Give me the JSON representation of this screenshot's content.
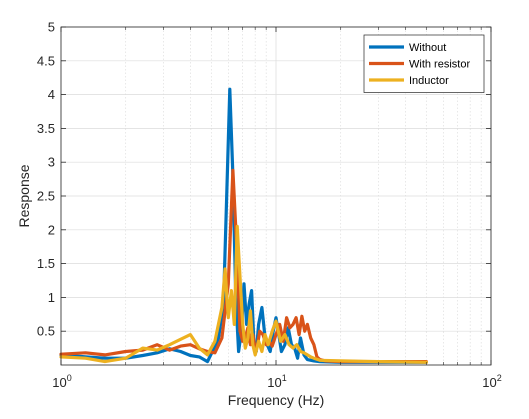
{
  "chart_data": {
    "type": "line",
    "xscale": "log",
    "xlim": [
      1,
      100
    ],
    "ylim": [
      0,
      5
    ],
    "xlabel": "Frequency (Hz)",
    "ylabel": "Response",
    "x_ticks": [
      1,
      10,
      100
    ],
    "x_tick_labels": [
      {
        "base": "10",
        "exp": "0"
      },
      {
        "base": "10",
        "exp": "1"
      },
      {
        "base": "10",
        "exp": "2"
      }
    ],
    "y_ticks": [
      0.5,
      1,
      1.5,
      2,
      2.5,
      3,
      3.5,
      4,
      4.5,
      5
    ],
    "y_tick_labels": [
      "0.5",
      "1",
      "1.5",
      "2",
      "2.5",
      "3",
      "3.5",
      "4",
      "4.5",
      "5"
    ],
    "grid": true,
    "legend_position": "top-right",
    "series": [
      {
        "name": "Without",
        "color": "#0072BD",
        "x": [
          1.0,
          1.3,
          1.6,
          2.0,
          2.4,
          2.8,
          3.2,
          3.6,
          4.0,
          4.4,
          4.8,
          5.1,
          5.4,
          5.7,
          5.9,
          6.1,
          6.3,
          6.5,
          6.7,
          6.9,
          7.1,
          7.3,
          7.5,
          7.7,
          7.9,
          8.1,
          8.3,
          8.6,
          8.9,
          9.1,
          9.4,
          9.7,
          10.0,
          10.3,
          10.6,
          11.0,
          11.4,
          11.8,
          12.2,
          12.6,
          13.0,
          13.5,
          14.0,
          15.0,
          16.0,
          20.0,
          30.0,
          50.0
        ],
        "values": [
          0.15,
          0.12,
          0.1,
          0.1,
          0.14,
          0.18,
          0.24,
          0.2,
          0.14,
          0.12,
          0.05,
          0.22,
          0.4,
          0.9,
          2.5,
          4.08,
          2.8,
          1.0,
          0.2,
          0.5,
          1.2,
          0.6,
          0.9,
          1.1,
          0.3,
          0.2,
          0.6,
          0.85,
          0.4,
          0.3,
          0.2,
          0.5,
          0.7,
          0.45,
          0.2,
          0.3,
          0.55,
          0.3,
          0.25,
          0.1,
          0.4,
          0.15,
          0.08,
          0.06,
          0.05,
          0.04,
          0.04,
          0.04
        ]
      },
      {
        "name": "With resistor",
        "color": "#D95319",
        "x": [
          1.0,
          1.3,
          1.6,
          2.0,
          2.4,
          2.8,
          3.2,
          3.6,
          4.0,
          4.4,
          4.8,
          5.2,
          5.6,
          6.0,
          6.3,
          6.6,
          6.8,
          7.0,
          7.2,
          7.4,
          7.6,
          7.8,
          8.0,
          8.2,
          8.4,
          8.7,
          9.0,
          9.3,
          9.6,
          10.0,
          10.4,
          10.8,
          11.2,
          11.6,
          12.0,
          12.4,
          12.8,
          13.2,
          13.6,
          14.0,
          14.5,
          15.0,
          15.5,
          16.0,
          17.0,
          20.0,
          30.0,
          50.0
        ],
        "values": [
          0.16,
          0.18,
          0.15,
          0.2,
          0.22,
          0.3,
          0.22,
          0.28,
          0.3,
          0.24,
          0.2,
          0.18,
          0.4,
          1.2,
          2.88,
          1.6,
          0.5,
          0.35,
          0.4,
          0.55,
          0.3,
          0.45,
          0.25,
          0.3,
          0.5,
          0.45,
          0.3,
          0.35,
          0.28,
          0.45,
          0.6,
          0.35,
          0.7,
          0.55,
          0.6,
          0.7,
          0.45,
          0.72,
          0.5,
          0.6,
          0.4,
          0.3,
          0.12,
          0.08,
          0.06,
          0.05,
          0.05,
          0.05
        ]
      },
      {
        "name": "Inductor",
        "color": "#EDB120",
        "x": [
          1.0,
          1.3,
          1.6,
          2.0,
          2.4,
          2.8,
          3.2,
          3.6,
          4.0,
          4.4,
          4.8,
          5.2,
          5.6,
          5.8,
          6.0,
          6.2,
          6.4,
          6.6,
          6.8,
          7.0,
          7.2,
          7.4,
          7.6,
          7.8,
          8.0,
          8.3,
          8.6,
          8.9,
          9.2,
          9.6,
          10.0,
          10.5,
          11.0,
          11.5,
          12.0,
          12.5,
          13.0,
          13.5,
          14.0,
          14.5,
          15.0,
          16.0,
          20.0,
          30.0,
          50.0
        ],
        "values": [
          0.12,
          0.1,
          0.05,
          0.1,
          0.25,
          0.22,
          0.3,
          0.38,
          0.45,
          0.25,
          0.15,
          0.35,
          0.85,
          1.42,
          0.7,
          1.1,
          0.6,
          2.05,
          1.3,
          0.6,
          0.25,
          0.4,
          0.8,
          0.3,
          0.15,
          0.35,
          0.2,
          0.45,
          0.3,
          0.5,
          0.65,
          0.35,
          0.45,
          0.3,
          0.25,
          0.3,
          0.2,
          0.18,
          0.15,
          0.12,
          0.1,
          0.07,
          0.06,
          0.05,
          0.04
        ]
      }
    ]
  }
}
